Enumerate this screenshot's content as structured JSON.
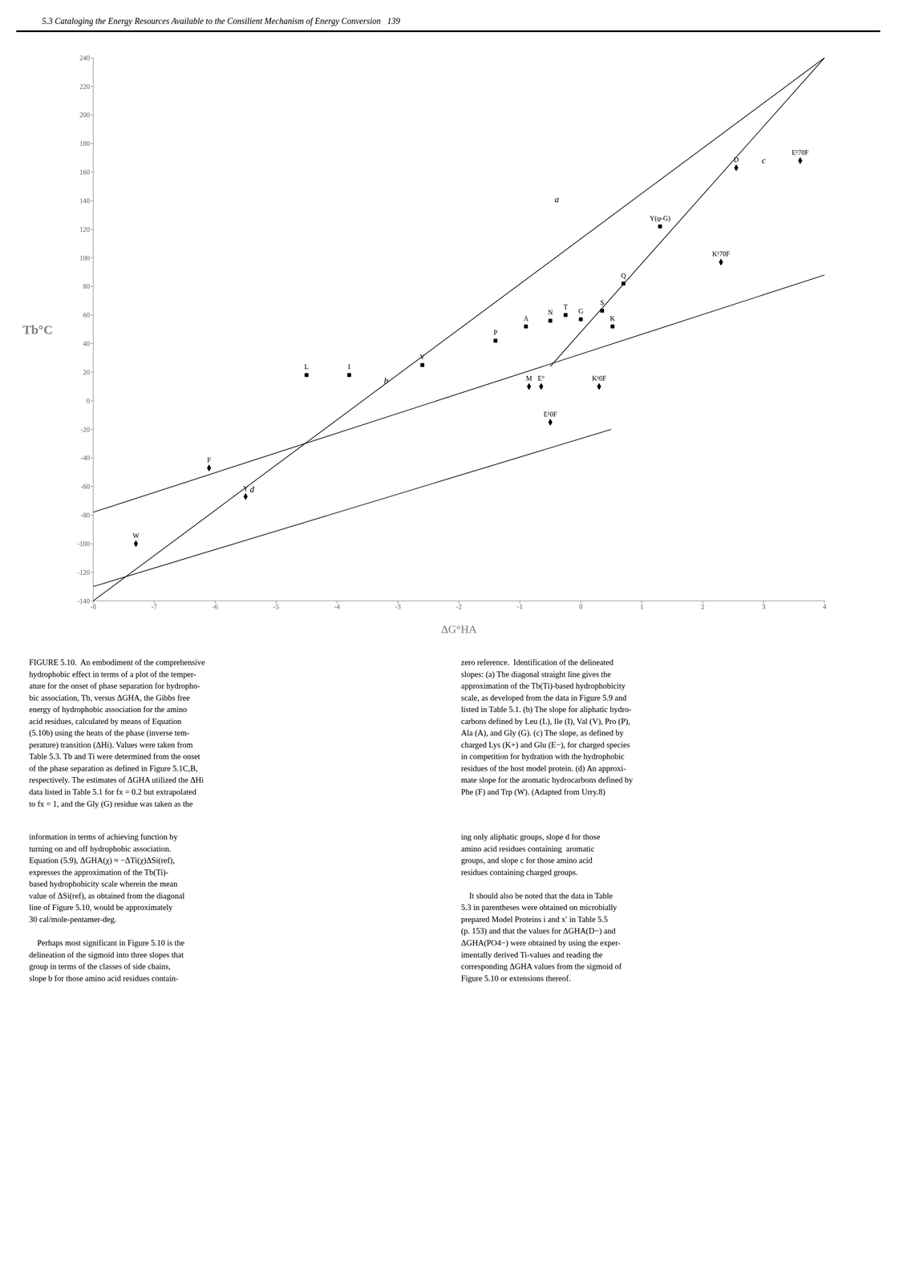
{
  "chart_data": {
    "type": "scatter",
    "title": "5.3 Cataloging the Energy Resources Available to the Consilient Mechanism of Energy Conversion   139",
    "xlabel": "ΔG°HA",
    "ylabel": "Tb°C",
    "xlim": [
      -8,
      4
    ],
    "ylim": [
      -140,
      240
    ],
    "xticks": [
      -8,
      -7,
      -6,
      -5,
      -4,
      -3,
      -2,
      -1,
      0,
      1,
      2,
      3,
      4
    ],
    "yticks": [
      -140,
      -120,
      -100,
      -80,
      -60,
      -40,
      -20,
      0,
      20,
      40,
      60,
      80,
      100,
      120,
      140,
      160,
      180,
      200,
      220,
      240
    ],
    "grid": false,
    "series": [
      {
        "type": "line",
        "color": "black",
        "x": [
          -8,
          4
        ],
        "values": [
          -140,
          240
        ]
      },
      {
        "type": "line",
        "color": "black",
        "x": [
          -8,
          4
        ],
        "values": [
          -78,
          88
        ]
      },
      {
        "type": "line",
        "color": "black",
        "x": [
          -0.5,
          4
        ],
        "values": [
          24,
          240
        ]
      },
      {
        "type": "line",
        "color": "black",
        "x": [
          -8,
          0.5
        ],
        "values": [
          -130,
          -20
        ]
      },
      {
        "type": "scatter",
        "marker": "square",
        "color": "black",
        "x": [
          -4.5,
          -3.8,
          -2.6,
          -1.4,
          -0.9,
          -0.5,
          -0.25,
          0.0,
          0.35,
          0.7,
          0.52,
          1.3
        ],
        "values": [
          18,
          18,
          25,
          42,
          52,
          56,
          60,
          57,
          63,
          82,
          52,
          122
        ],
        "labels": [
          "L",
          "I",
          "V",
          "P",
          "A",
          "N",
          "T",
          "G",
          "S",
          "Q",
          "K",
          "Y(φ-G)"
        ]
      },
      {
        "type": "scatter",
        "marker": "diamond",
        "color": "black",
        "x": [
          -7.3,
          -6.1,
          -5.5,
          -0.85,
          -0.65,
          0.3,
          -0.5,
          2.3,
          3.6,
          2.55
        ],
        "values": [
          -100,
          -47,
          -67,
          10,
          10,
          10,
          -15,
          97,
          168,
          163
        ],
        "labels": [
          "W",
          "F",
          "Y",
          "M",
          "E°",
          "K¹0F",
          "E¹0F",
          "K¹70F",
          "E¹70F",
          "D"
        ]
      }
    ],
    "annotations": [
      {
        "text": "a",
        "x": -0.5,
        "y": 136
      },
      {
        "text": "b",
        "x": -3.3,
        "y": 9
      },
      {
        "text": "c",
        "x": 2.9,
        "y": 163
      },
      {
        "text": "d",
        "x": -5.5,
        "y": -67
      },
      {
        "text": "FIGURE 5.10.  An embodiment of the comprehensive\nhydrophobic effect in terms of a plot of the temper-\nature for the onset of phase separation for hydropho-\nbic association, Tb, versus ΔGHA, the Gibbs free\nenergy of hydrophobic association for the amino\nacid residues, calculated by means of Equation\n(5.10b) using the heats of the phase (inverse tem-\nperature) transition (ΔHi). Values were taken from\nTable 5.3. Tb and Ti were determined from the onset\nof the phase separation as defined in Figure 5.1C,B,\nrespectively. The estimates of ΔGHA utilized the ΔHi\ndata listed in Table 5.1 for fx = 0.2 but extrapolated\nto fx = 1, and the Gly (G) residue was taken as the"
      },
      {
        "text": "zero reference.  Identification of the delineated\nslopes: (a) The diagonal straight line gives the\napproximation of the Tb(Ti)-based hydrophobicity\nscale, as developed from the data in Figure 5.9 and\nlisted in Table 5.1. (b) The slope for aliphatic hydro-\ncarbons defined by Leu (L), Ile (I), Val (V), Pro (P),\nAla (A), and Gly (G). (c) The slope, as defined by\ncharged Lys (K+) and Glu (E−), for charged species\nin competition for hydration with the hydrophobic\nresidues of the host model protein. (d) An approxi-\nmate slope for the aromatic hydrocarbons defined by\nPhe (F) and Trp (W). (Adapted from Urry.8)"
      },
      {
        "text": "information in terms of achieving function by\nturning on and off hydrophobic association.\nEquation (5.9), ΔGHA(χ) ≈ −ΔTi(χ)ΔSi(ref),\nexpresses the approximation of the Tb(Ti)-\nbased hydrophobicity scale wherein the mean\nvalue of ΔSi(ref), as obtained from the diagonal\nline of Figure 5.10, would be approximately\n30 cal/mole-pentamer-deg.\n\n    Perhaps most significant in Figure 5.10 is the\ndelineation of the sigmoid into three slopes that\ngroup in terms of the classes of side chains,\nslope b for those amino acid residues contain-"
      },
      {
        "text": "ing only aliphatic groups, slope d for those\namino acid residues containing  aromatic\ngroups, and slope c for those amino acid\nresidues containing charged groups.\n\n    It should also be noted that the data in Table\n5.3 in parentheses were obtained on microbially\nprepared Model Proteins i and x′ in Table 5.5\n(p. 153) and that the values for ΔGHA(D−) and\nΔGHA(PO4−) were obtained by using the exper-\nimentally derived Ti-values and reading the\ncorresponding ΔGHA values from the sigmoid of\nFigure 5.10 or extensions thereof."
      }
    ]
  }
}
